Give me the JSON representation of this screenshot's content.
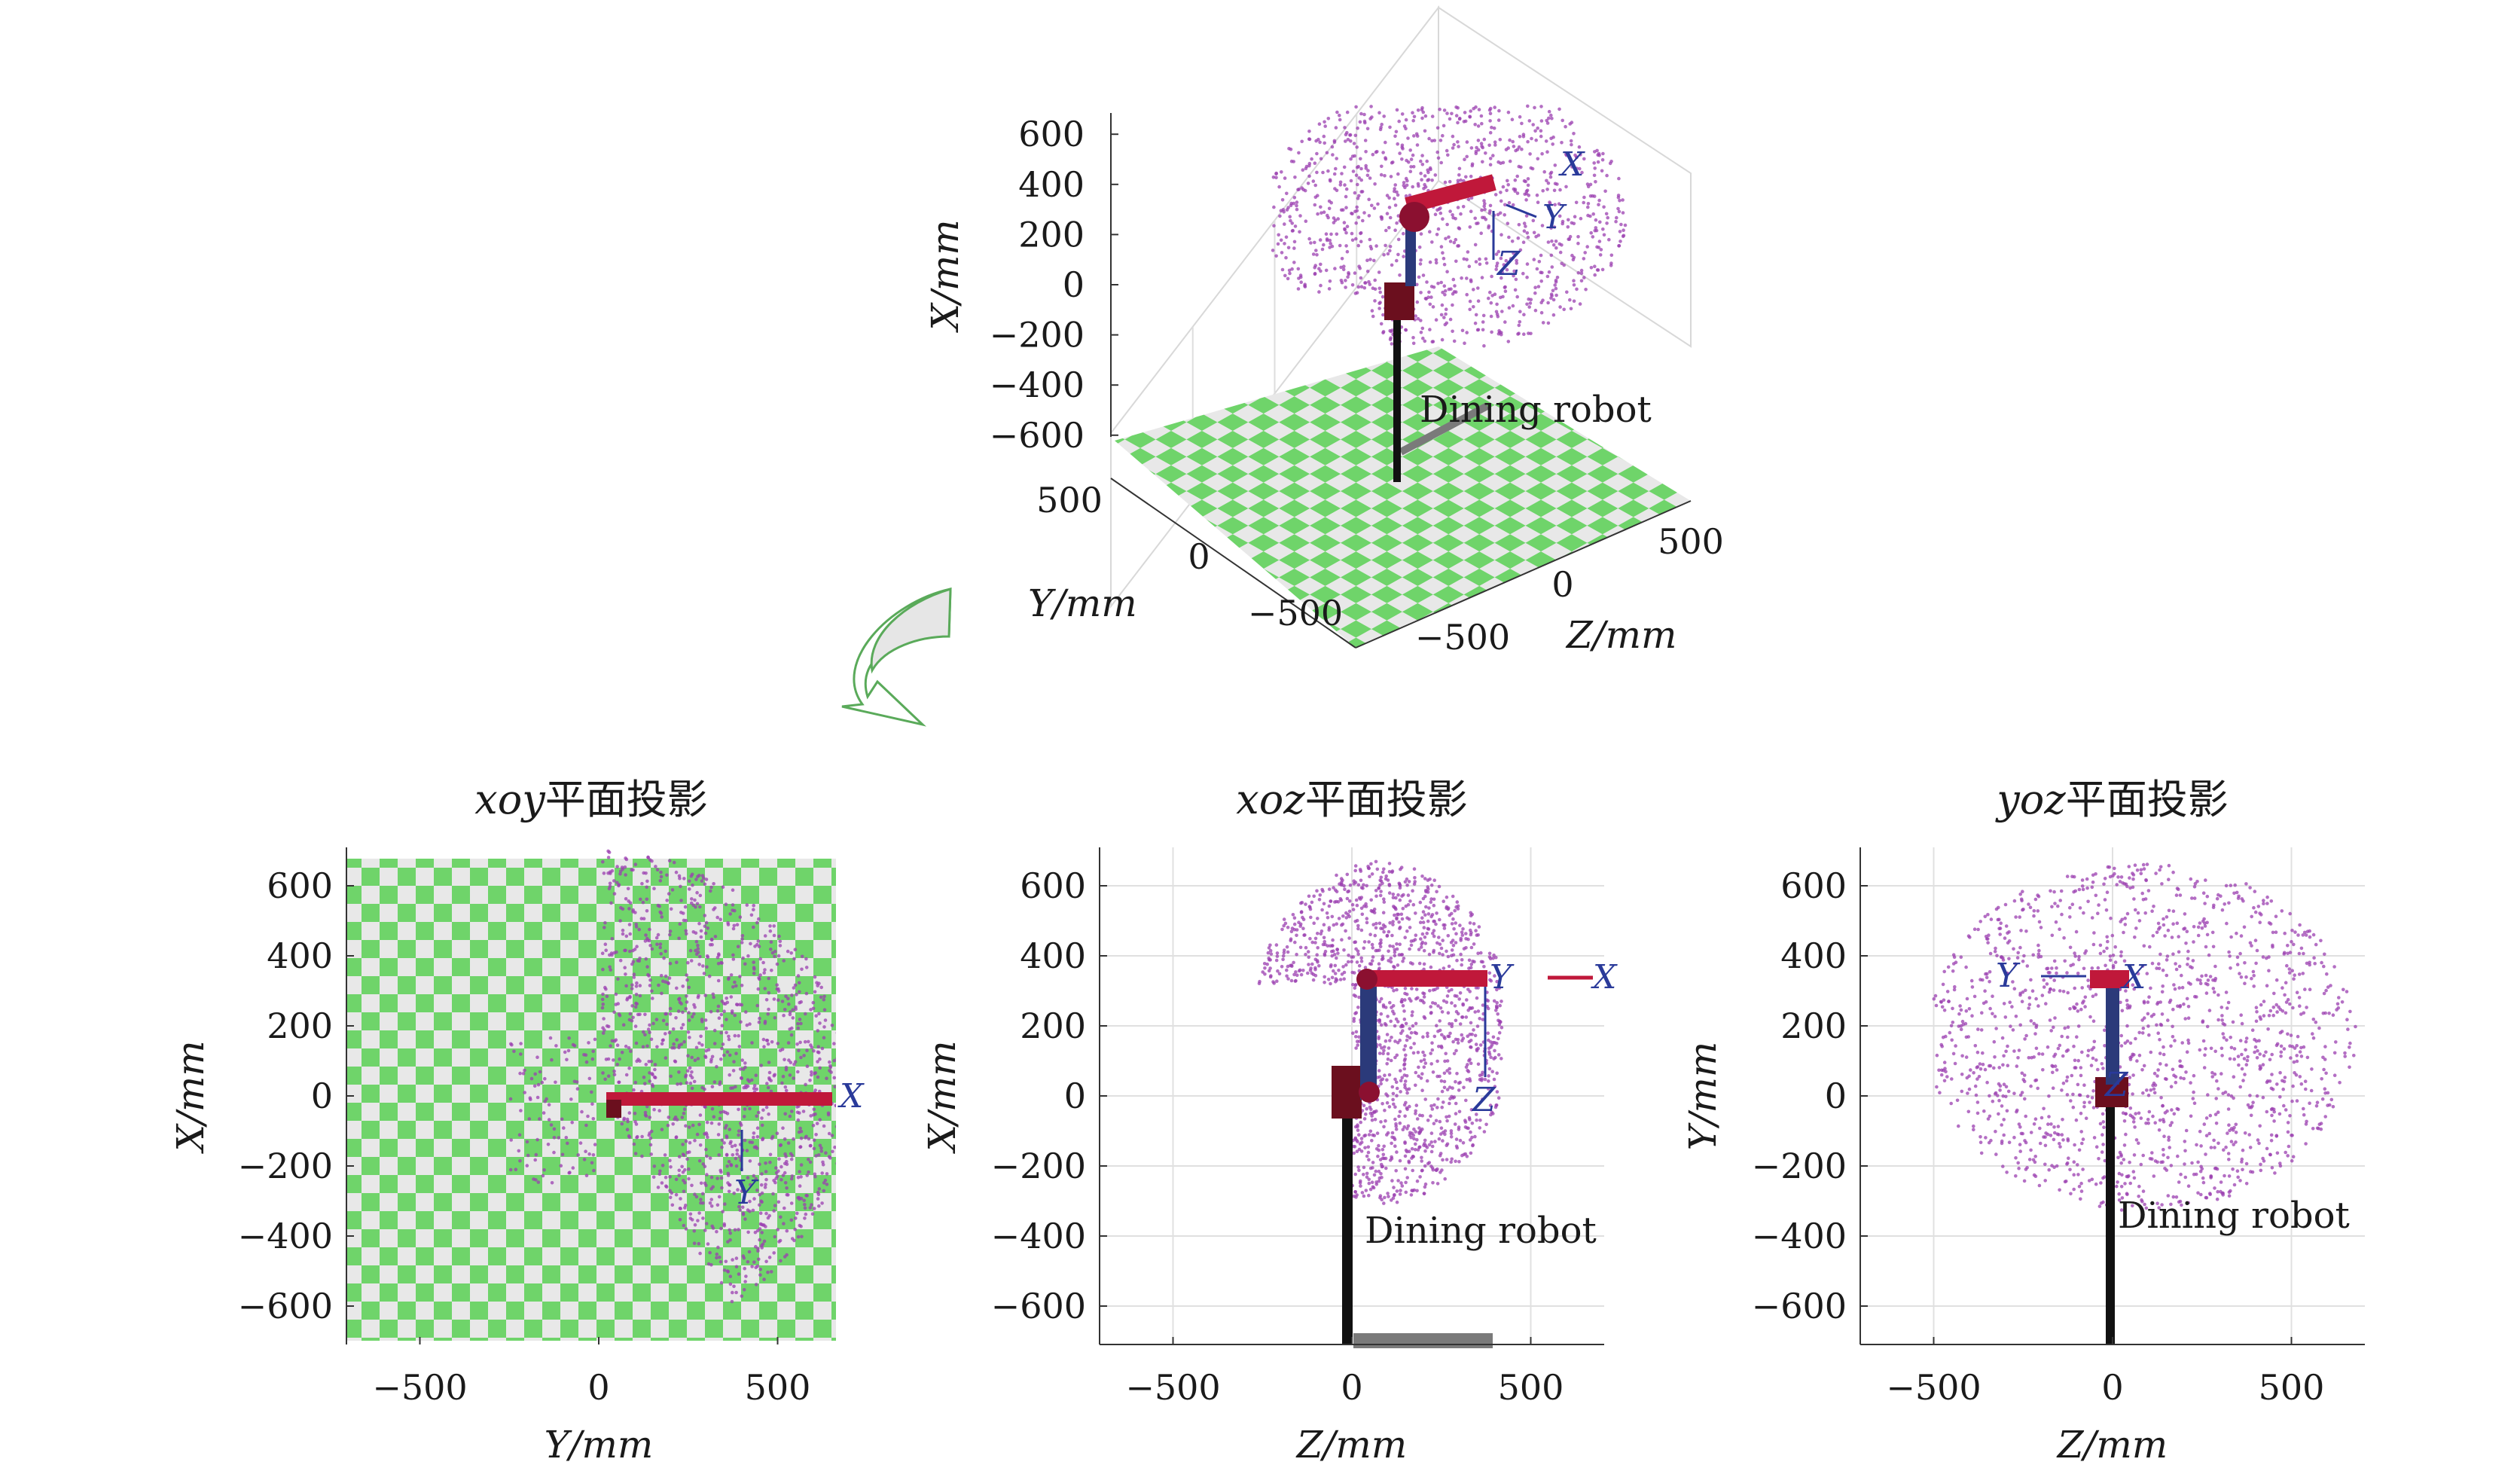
{
  "chart_data": [
    {
      "id": "3d",
      "type": "scatter",
      "title": "",
      "xlabel": "Z/mm",
      "ylabel": "Y/mm",
      "zlabel": "X/mm",
      "vertical_ticks": [
        600,
        400,
        200,
        0,
        -200,
        -400,
        -600
      ],
      "vertical_tick_labels": [
        "600",
        "400",
        "200",
        "0",
        "−200",
        "−400",
        "−600"
      ],
      "y_ticks": [
        500,
        0,
        -500
      ],
      "y_tick_labels": [
        "500",
        "0",
        "−500"
      ],
      "z_ticks": [
        500,
        0,
        -500
      ],
      "z_tick_labels": [
        "500",
        "0",
        "−500"
      ],
      "annotation": "Dining robot",
      "frame_labels": [
        "X",
        "Y",
        "Z"
      ],
      "point_color": "#9b3fb0",
      "floor_colors": [
        "#6fd46a",
        "#e8e8e8"
      ],
      "grid": true
    },
    {
      "id": "xoy",
      "type": "scatter",
      "title_italic": "xoy",
      "title_rest": "平面投影",
      "xlabel": "Y/mm",
      "ylabel": "X/mm",
      "xlim": [
        -700,
        700
      ],
      "ylim": [
        -720,
        710
      ],
      "x_ticks": [
        -500,
        0,
        500
      ],
      "x_tick_labels": [
        "−500",
        "0",
        "500"
      ],
      "y_ticks": [
        600,
        400,
        200,
        0,
        -200,
        -400,
        -600
      ],
      "y_tick_labels": [
        "600",
        "400",
        "200",
        "0",
        "−200",
        "−400",
        "−600"
      ],
      "frame_labels": [
        "X",
        "Y"
      ],
      "point_color": "#9b3fb0",
      "floor_colors": [
        "#6fd46a",
        "#e8e8e8"
      ],
      "grid": false
    },
    {
      "id": "xoz",
      "type": "scatter",
      "title_italic": "xoz",
      "title_rest": "平面投影",
      "xlabel": "Z/mm",
      "ylabel": "X/mm",
      "xlim": [
        -700,
        700
      ],
      "ylim": [
        -720,
        710
      ],
      "x_ticks": [
        -500,
        0,
        500
      ],
      "x_tick_labels": [
        "−500",
        "0",
        "500"
      ],
      "y_ticks": [
        600,
        400,
        200,
        0,
        -200,
        -400,
        -600
      ],
      "y_tick_labels": [
        "600",
        "400",
        "200",
        "0",
        "−200",
        "−400",
        "−600"
      ],
      "annotation": "Dining robot",
      "frame_labels": [
        "X",
        "Y",
        "Z"
      ],
      "point_color": "#9b3fb0",
      "grid": true
    },
    {
      "id": "yoz",
      "type": "scatter",
      "title_italic": "yoz",
      "title_rest": "平面投影",
      "xlabel": "Z/mm",
      "ylabel": "Y/mm",
      "xlim": [
        -700,
        700
      ],
      "ylim": [
        -720,
        710
      ],
      "x_ticks": [
        -500,
        0,
        500
      ],
      "x_tick_labels": [
        "−500",
        "0",
        "500"
      ],
      "y_ticks": [
        600,
        400,
        200,
        0,
        -200,
        -400,
        -600
      ],
      "y_tick_labels": [
        "600",
        "400",
        "200",
        "0",
        "−200",
        "−400",
        "−600"
      ],
      "annotation": "Dining robot",
      "frame_labels": [
        "X",
        "Y",
        "Z"
      ],
      "point_color": "#9b3fb0",
      "grid": true
    }
  ]
}
